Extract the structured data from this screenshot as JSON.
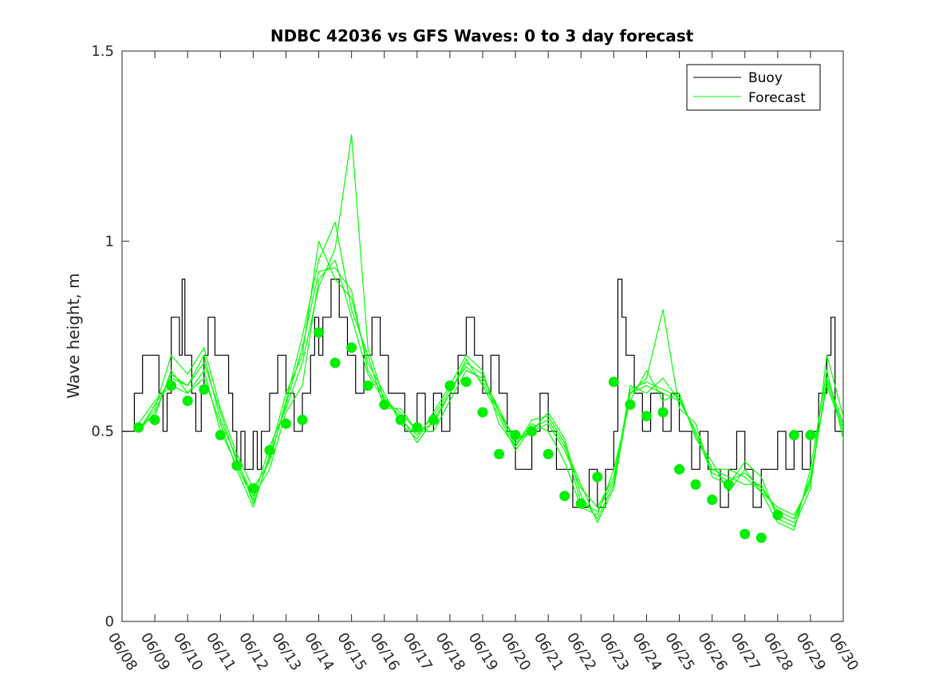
{
  "chart_data": {
    "type": "line",
    "title": "NDBC 42036 vs GFS Waves: 0 to 3 day forecast",
    "xlabel": "",
    "ylabel": "Wave height, m",
    "xlim": [
      "06/08",
      "06/30"
    ],
    "ylim": [
      0,
      1.5
    ],
    "x_tick_labels": [
      "06/08",
      "06/09",
      "06/10",
      "06/11",
      "06/12",
      "06/13",
      "06/14",
      "06/15",
      "06/16",
      "06/17",
      "06/18",
      "06/19",
      "06/20",
      "06/21",
      "06/22",
      "06/23",
      "06/24",
      "06/25",
      "06/26",
      "06/27",
      "06/28",
      "06/29",
      "06/30"
    ],
    "y_ticks": [
      0,
      0.5,
      1,
      1.5
    ],
    "y_tick_labels": [
      "0",
      "0.5",
      "1",
      "1.5"
    ],
    "grid": false,
    "legend": {
      "position": "top-right",
      "entries": [
        "Buoy",
        "Forecast"
      ]
    },
    "colors": {
      "buoy": "#000000",
      "forecast": "#00ff00",
      "markers": "#00ee00"
    },
    "series": [
      {
        "name": "Buoy",
        "style": "stairs",
        "x": [
          "06/08 00:00",
          "06/08 09:00",
          "06/08 15:00",
          "06/09 03:00",
          "06/09 06:00",
          "06/09 09:00",
          "06/09 12:00",
          "06/09 18:00",
          "06/09 20:00",
          "06/09 22:00",
          "06/10 03:00",
          "06/10 06:00",
          "06/10 10:00",
          "06/10 12:00",
          "06/10 15:00",
          "06/10 20:00",
          "06/11 06:00",
          "06/11 09:00",
          "06/11 12:00",
          "06/11 15:00",
          "06/11 18:00",
          "06/12 00:00",
          "06/12 03:00",
          "06/12 06:00",
          "06/12 12:00",
          "06/12 18:00",
          "06/13 00:00",
          "06/13 06:00",
          "06/13 12:00",
          "06/13 18:00",
          "06/13 21:00",
          "06/14 00:00",
          "06/14 03:00",
          "06/14 09:00",
          "06/14 15:00",
          "06/14 21:00",
          "06/15 03:00",
          "06/15 09:00",
          "06/15 15:00",
          "06/15 21:00",
          "06/16 03:00",
          "06/16 09:00",
          "06/16 15:00",
          "06/17 00:00",
          "06/17 06:00",
          "06/17 12:00",
          "06/17 18:00",
          "06/18 00:00",
          "06/18 06:00",
          "06/18 12:00",
          "06/18 18:00",
          "06/19 00:00",
          "06/19 06:00",
          "06/19 12:00",
          "06/19 18:00",
          "06/20 00:00",
          "06/20 12:00",
          "06/20 18:00",
          "06/21 00:00",
          "06/21 06:00",
          "06/21 12:00",
          "06/21 18:00",
          "06/22 00:00",
          "06/22 06:00",
          "06/22 12:00",
          "06/22 18:00",
          "06/23 00:00",
          "06/23 03:00",
          "06/23 06:00",
          "06/23 09:00",
          "06/23 15:00",
          "06/23 21:00",
          "06/24 03:00",
          "06/24 12:00",
          "06/24 18:00",
          "06/25 00:00",
          "06/25 09:00",
          "06/25 15:00",
          "06/25 21:00",
          "06/26 06:00",
          "06/26 12:00",
          "06/26 18:00",
          "06/27 00:00",
          "06/27 06:00",
          "06/27 12:00",
          "06/27 18:00",
          "06/28 00:00",
          "06/28 06:00",
          "06/28 12:00",
          "06/28 18:00",
          "06/29 00:00",
          "06/29 06:00",
          "06/29 12:00",
          "06/29 15:00",
          "06/29 18:00",
          "06/30 00:00"
        ],
        "y": [
          0.5,
          0.6,
          0.7,
          0.6,
          0.5,
          0.6,
          0.8,
          0.7,
          0.9,
          0.7,
          0.6,
          0.5,
          0.6,
          0.7,
          0.8,
          0.7,
          0.6,
          0.5,
          0.4,
          0.5,
          0.4,
          0.5,
          0.4,
          0.5,
          0.6,
          0.7,
          0.6,
          0.5,
          0.6,
          0.7,
          0.8,
          0.7,
          0.8,
          0.9,
          0.8,
          0.7,
          0.6,
          0.7,
          0.8,
          0.7,
          0.6,
          0.6,
          0.5,
          0.6,
          0.5,
          0.6,
          0.5,
          0.6,
          0.7,
          0.8,
          0.7,
          0.6,
          0.7,
          0.6,
          0.5,
          0.4,
          0.5,
          0.6,
          0.5,
          0.4,
          0.4,
          0.3,
          0.3,
          0.4,
          0.3,
          0.4,
          0.5,
          0.9,
          0.8,
          0.7,
          0.6,
          0.5,
          0.6,
          0.5,
          0.6,
          0.5,
          0.4,
          0.5,
          0.4,
          0.3,
          0.4,
          0.5,
          0.4,
          0.3,
          0.4,
          0.4,
          0.5,
          0.4,
          0.5,
          0.4,
          0.5,
          0.6,
          0.7,
          0.8,
          0.5,
          0.5
        ]
      },
      {
        "name": "Forecast",
        "x": [
          "06/08 12:00",
          "06/09 00:00",
          "06/09 12:00",
          "06/10 00:00",
          "06/10 12:00",
          "06/11 00:00",
          "06/11 12:00",
          "06/12 00:00",
          "06/12 12:00",
          "06/13 00:00",
          "06/13 12:00",
          "06/14 00:00",
          "06/14 12:00",
          "06/15 00:00",
          "06/15 12:00",
          "06/16 00:00",
          "06/16 12:00",
          "06/17 00:00",
          "06/17 12:00",
          "06/18 00:00",
          "06/18 12:00",
          "06/19 00:00",
          "06/19 12:00",
          "06/20 00:00",
          "06/20 12:00",
          "06/21 00:00",
          "06/21 12:00",
          "06/22 00:00",
          "06/22 12:00",
          "06/23 00:00",
          "06/23 12:00",
          "06/24 00:00",
          "06/24 12:00",
          "06/25 00:00",
          "06/25 12:00",
          "06/26 00:00",
          "06/26 12:00",
          "06/27 00:00",
          "06/27 12:00",
          "06/28 00:00",
          "06/28 12:00",
          "06/29 00:00",
          "06/29 12:00",
          "06/30 00:00"
        ],
        "y": [
          0.5,
          0.55,
          0.65,
          0.62,
          0.68,
          0.55,
          0.42,
          0.33,
          0.4,
          0.55,
          0.62,
          0.9,
          0.95,
          0.8,
          0.65,
          0.58,
          0.55,
          0.5,
          0.52,
          0.6,
          0.68,
          0.65,
          0.55,
          0.48,
          0.5,
          0.52,
          0.45,
          0.35,
          0.3,
          0.38,
          0.6,
          0.62,
          0.6,
          0.58,
          0.5,
          0.4,
          0.38,
          0.36,
          0.36,
          0.28,
          0.26,
          0.38,
          0.62,
          0.5
        ]
      },
      {
        "name": "Forecast",
        "x": [
          "06/08 12:00",
          "06/09 00:00",
          "06/09 12:00",
          "06/10 00:00",
          "06/10 12:00",
          "06/11 00:00",
          "06/11 12:00",
          "06/12 00:00",
          "06/12 12:00",
          "06/13 00:00",
          "06/13 12:00",
          "06/14 00:00",
          "06/14 12:00",
          "06/15 00:00",
          "06/15 12:00",
          "06/16 00:00",
          "06/16 12:00",
          "06/17 00:00",
          "06/17 12:00",
          "06/18 00:00",
          "06/18 12:00",
          "06/19 00:00",
          "06/19 12:00",
          "06/20 00:00",
          "06/20 12:00",
          "06/21 00:00",
          "06/21 12:00",
          "06/22 00:00",
          "06/22 12:00",
          "06/23 00:00",
          "06/23 12:00",
          "06/24 00:00",
          "06/24 12:00",
          "06/25 00:00",
          "06/25 12:00",
          "06/26 00:00",
          "06/26 12:00",
          "06/27 00:00",
          "06/27 12:00",
          "06/28 00:00",
          "06/28 12:00",
          "06/29 00:00",
          "06/29 12:00",
          "06/30 00:00"
        ],
        "y": [
          0.52,
          0.58,
          0.62,
          0.6,
          0.64,
          0.52,
          0.4,
          0.3,
          0.44,
          0.6,
          0.7,
          1.0,
          0.9,
          0.85,
          0.68,
          0.6,
          0.52,
          0.48,
          0.55,
          0.62,
          0.7,
          0.66,
          0.52,
          0.46,
          0.52,
          0.5,
          0.42,
          0.3,
          0.28,
          0.4,
          0.58,
          0.66,
          0.58,
          0.6,
          0.48,
          0.42,
          0.34,
          0.4,
          0.34,
          0.26,
          0.24,
          0.4,
          0.66,
          0.48
        ]
      },
      {
        "name": "Forecast",
        "x": [
          "06/08 12:00",
          "06/09 00:00",
          "06/09 12:00",
          "06/10 00:00",
          "06/10 12:00",
          "06/11 00:00",
          "06/11 12:00",
          "06/12 00:00",
          "06/12 12:00",
          "06/13 00:00",
          "06/13 12:00",
          "06/14 00:00",
          "06/14 12:00",
          "06/15 00:00",
          "06/15 12:00",
          "06/16 00:00",
          "06/16 12:00",
          "06/17 00:00",
          "06/17 12:00",
          "06/18 00:00",
          "06/18 12:00",
          "06/19 00:00",
          "06/19 12:00",
          "06/20 00:00",
          "06/20 12:00",
          "06/21 00:00",
          "06/21 12:00",
          "06/22 00:00",
          "06/22 12:00",
          "06/23 00:00",
          "06/23 12:00",
          "06/24 00:00",
          "06/24 12:00",
          "06/25 00:00",
          "06/25 12:00",
          "06/26 00:00",
          "06/26 12:00",
          "06/27 00:00",
          "06/27 12:00",
          "06/28 00:00",
          "06/28 12:00",
          "06/29 00:00",
          "06/29 12:00",
          "06/30 00:00"
        ],
        "y": [
          0.5,
          0.56,
          0.7,
          0.65,
          0.72,
          0.56,
          0.44,
          0.35,
          0.42,
          0.58,
          0.75,
          0.95,
          1.05,
          0.82,
          0.7,
          0.56,
          0.56,
          0.5,
          0.5,
          0.58,
          0.66,
          0.64,
          0.56,
          0.47,
          0.5,
          0.55,
          0.48,
          0.33,
          0.27,
          0.36,
          0.62,
          0.6,
          0.64,
          0.58,
          0.5,
          0.4,
          0.4,
          0.38,
          0.34,
          0.3,
          0.28,
          0.36,
          0.64,
          0.52
        ]
      },
      {
        "name": "Forecast",
        "x": [
          "06/08 12:00",
          "06/09 00:00",
          "06/09 12:00",
          "06/10 00:00",
          "06/10 12:00",
          "06/11 00:00",
          "06/11 12:00",
          "06/12 00:00",
          "06/12 12:00",
          "06/13 00:00",
          "06/13 12:00",
          "06/14 00:00",
          "06/14 12:00",
          "06/15 00:00",
          "06/15 12:00",
          "06/16 00:00",
          "06/16 12:00",
          "06/17 00:00",
          "06/17 12:00",
          "06/18 00:00",
          "06/18 12:00",
          "06/19 00:00",
          "06/19 12:00",
          "06/20 00:00",
          "06/20 12:00",
          "06/21 00:00",
          "06/21 12:00",
          "06/22 00:00",
          "06/22 12:00",
          "06/23 00:00",
          "06/23 12:00",
          "06/24 00:00",
          "06/24 12:00",
          "06/25 00:00",
          "06/25 12:00",
          "06/26 00:00",
          "06/26 12:00",
          "06/27 00:00",
          "06/27 12:00",
          "06/28 00:00",
          "06/28 12:00",
          "06/29 00:00",
          "06/29 12:00",
          "06/30 00:00"
        ],
        "y": [
          0.51,
          0.54,
          0.66,
          0.6,
          0.66,
          0.5,
          0.41,
          0.32,
          0.46,
          0.56,
          0.68,
          0.88,
          0.98,
          1.28,
          0.72,
          0.58,
          0.54,
          0.47,
          0.53,
          0.6,
          0.69,
          0.62,
          0.54,
          0.45,
          0.51,
          0.53,
          0.46,
          0.36,
          0.26,
          0.35,
          0.6,
          0.64,
          0.82,
          0.56,
          0.52,
          0.38,
          0.36,
          0.42,
          0.38,
          0.27,
          0.25,
          0.35,
          0.7,
          0.54
        ]
      },
      {
        "name": "Forecast",
        "x": [
          "06/08 12:00",
          "06/09 00:00",
          "06/09 12:00",
          "06/10 00:00",
          "06/10 12:00",
          "06/11 00:00",
          "06/11 12:00",
          "06/12 00:00",
          "06/12 12:00",
          "06/13 00:00",
          "06/13 12:00",
          "06/14 00:00",
          "06/14 12:00",
          "06/15 00:00",
          "06/15 12:00",
          "06/16 00:00",
          "06/16 12:00",
          "06/17 00:00",
          "06/17 12:00",
          "06/18 00:00",
          "06/18 12:00",
          "06/19 00:00",
          "06/19 12:00",
          "06/20 00:00",
          "06/20 12:00",
          "06/21 00:00",
          "06/21 12:00",
          "06/22 00:00",
          "06/22 12:00",
          "06/23 00:00",
          "06/23 12:00",
          "06/24 00:00",
          "06/24 12:00",
          "06/25 00:00",
          "06/25 12:00",
          "06/26 00:00",
          "06/26 12:00",
          "06/27 00:00",
          "06/27 12:00",
          "06/28 00:00",
          "06/28 12:00",
          "06/29 00:00",
          "06/29 12:00",
          "06/30 00:00"
        ],
        "y": [
          0.5,
          0.57,
          0.64,
          0.62,
          0.7,
          0.53,
          0.43,
          0.31,
          0.43,
          0.57,
          0.72,
          0.92,
          0.93,
          0.87,
          0.66,
          0.59,
          0.53,
          0.49,
          0.54,
          0.61,
          0.67,
          0.63,
          0.55,
          0.46,
          0.53,
          0.54,
          0.47,
          0.31,
          0.29,
          0.37,
          0.61,
          0.63,
          0.61,
          0.59,
          0.49,
          0.39,
          0.37,
          0.39,
          0.35,
          0.29,
          0.27,
          0.37,
          0.63,
          0.51
        ]
      },
      {
        "name": "markers",
        "x": [
          "06/08 12:00",
          "06/09 00:00",
          "06/09 12:00",
          "06/10 00:00",
          "06/10 12:00",
          "06/11 00:00",
          "06/11 12:00",
          "06/12 00:00",
          "06/12 12:00",
          "06/13 00:00",
          "06/13 12:00",
          "06/14 00:00",
          "06/14 12:00",
          "06/15 00:00",
          "06/15 12:00",
          "06/16 00:00",
          "06/16 12:00",
          "06/17 00:00",
          "06/17 12:00",
          "06/18 00:00",
          "06/18 12:00",
          "06/19 00:00",
          "06/19 12:00",
          "06/20 00:00",
          "06/20 12:00",
          "06/21 00:00",
          "06/21 12:00",
          "06/22 00:00",
          "06/22 12:00",
          "06/23 00:00",
          "06/23 12:00",
          "06/24 00:00",
          "06/24 12:00",
          "06/25 00:00",
          "06/25 12:00",
          "06/26 00:00",
          "06/26 12:00",
          "06/27 00:00",
          "06/27 12:00",
          "06/28 00:00",
          "06/28 12:00",
          "06/29 00:00"
        ],
        "y": [
          0.51,
          0.53,
          0.62,
          0.58,
          0.61,
          0.49,
          0.41,
          0.35,
          0.45,
          0.52,
          0.53,
          0.76,
          0.68,
          0.72,
          0.62,
          0.57,
          0.53,
          0.51,
          0.53,
          0.62,
          0.63,
          0.55,
          0.44,
          0.49,
          0.5,
          0.44,
          0.33,
          0.31,
          0.38,
          0.63,
          0.57,
          0.54,
          0.55,
          0.4,
          0.36,
          0.32,
          0.36,
          0.23,
          0.22,
          0.28,
          0.49,
          0.49
        ]
      }
    ]
  }
}
